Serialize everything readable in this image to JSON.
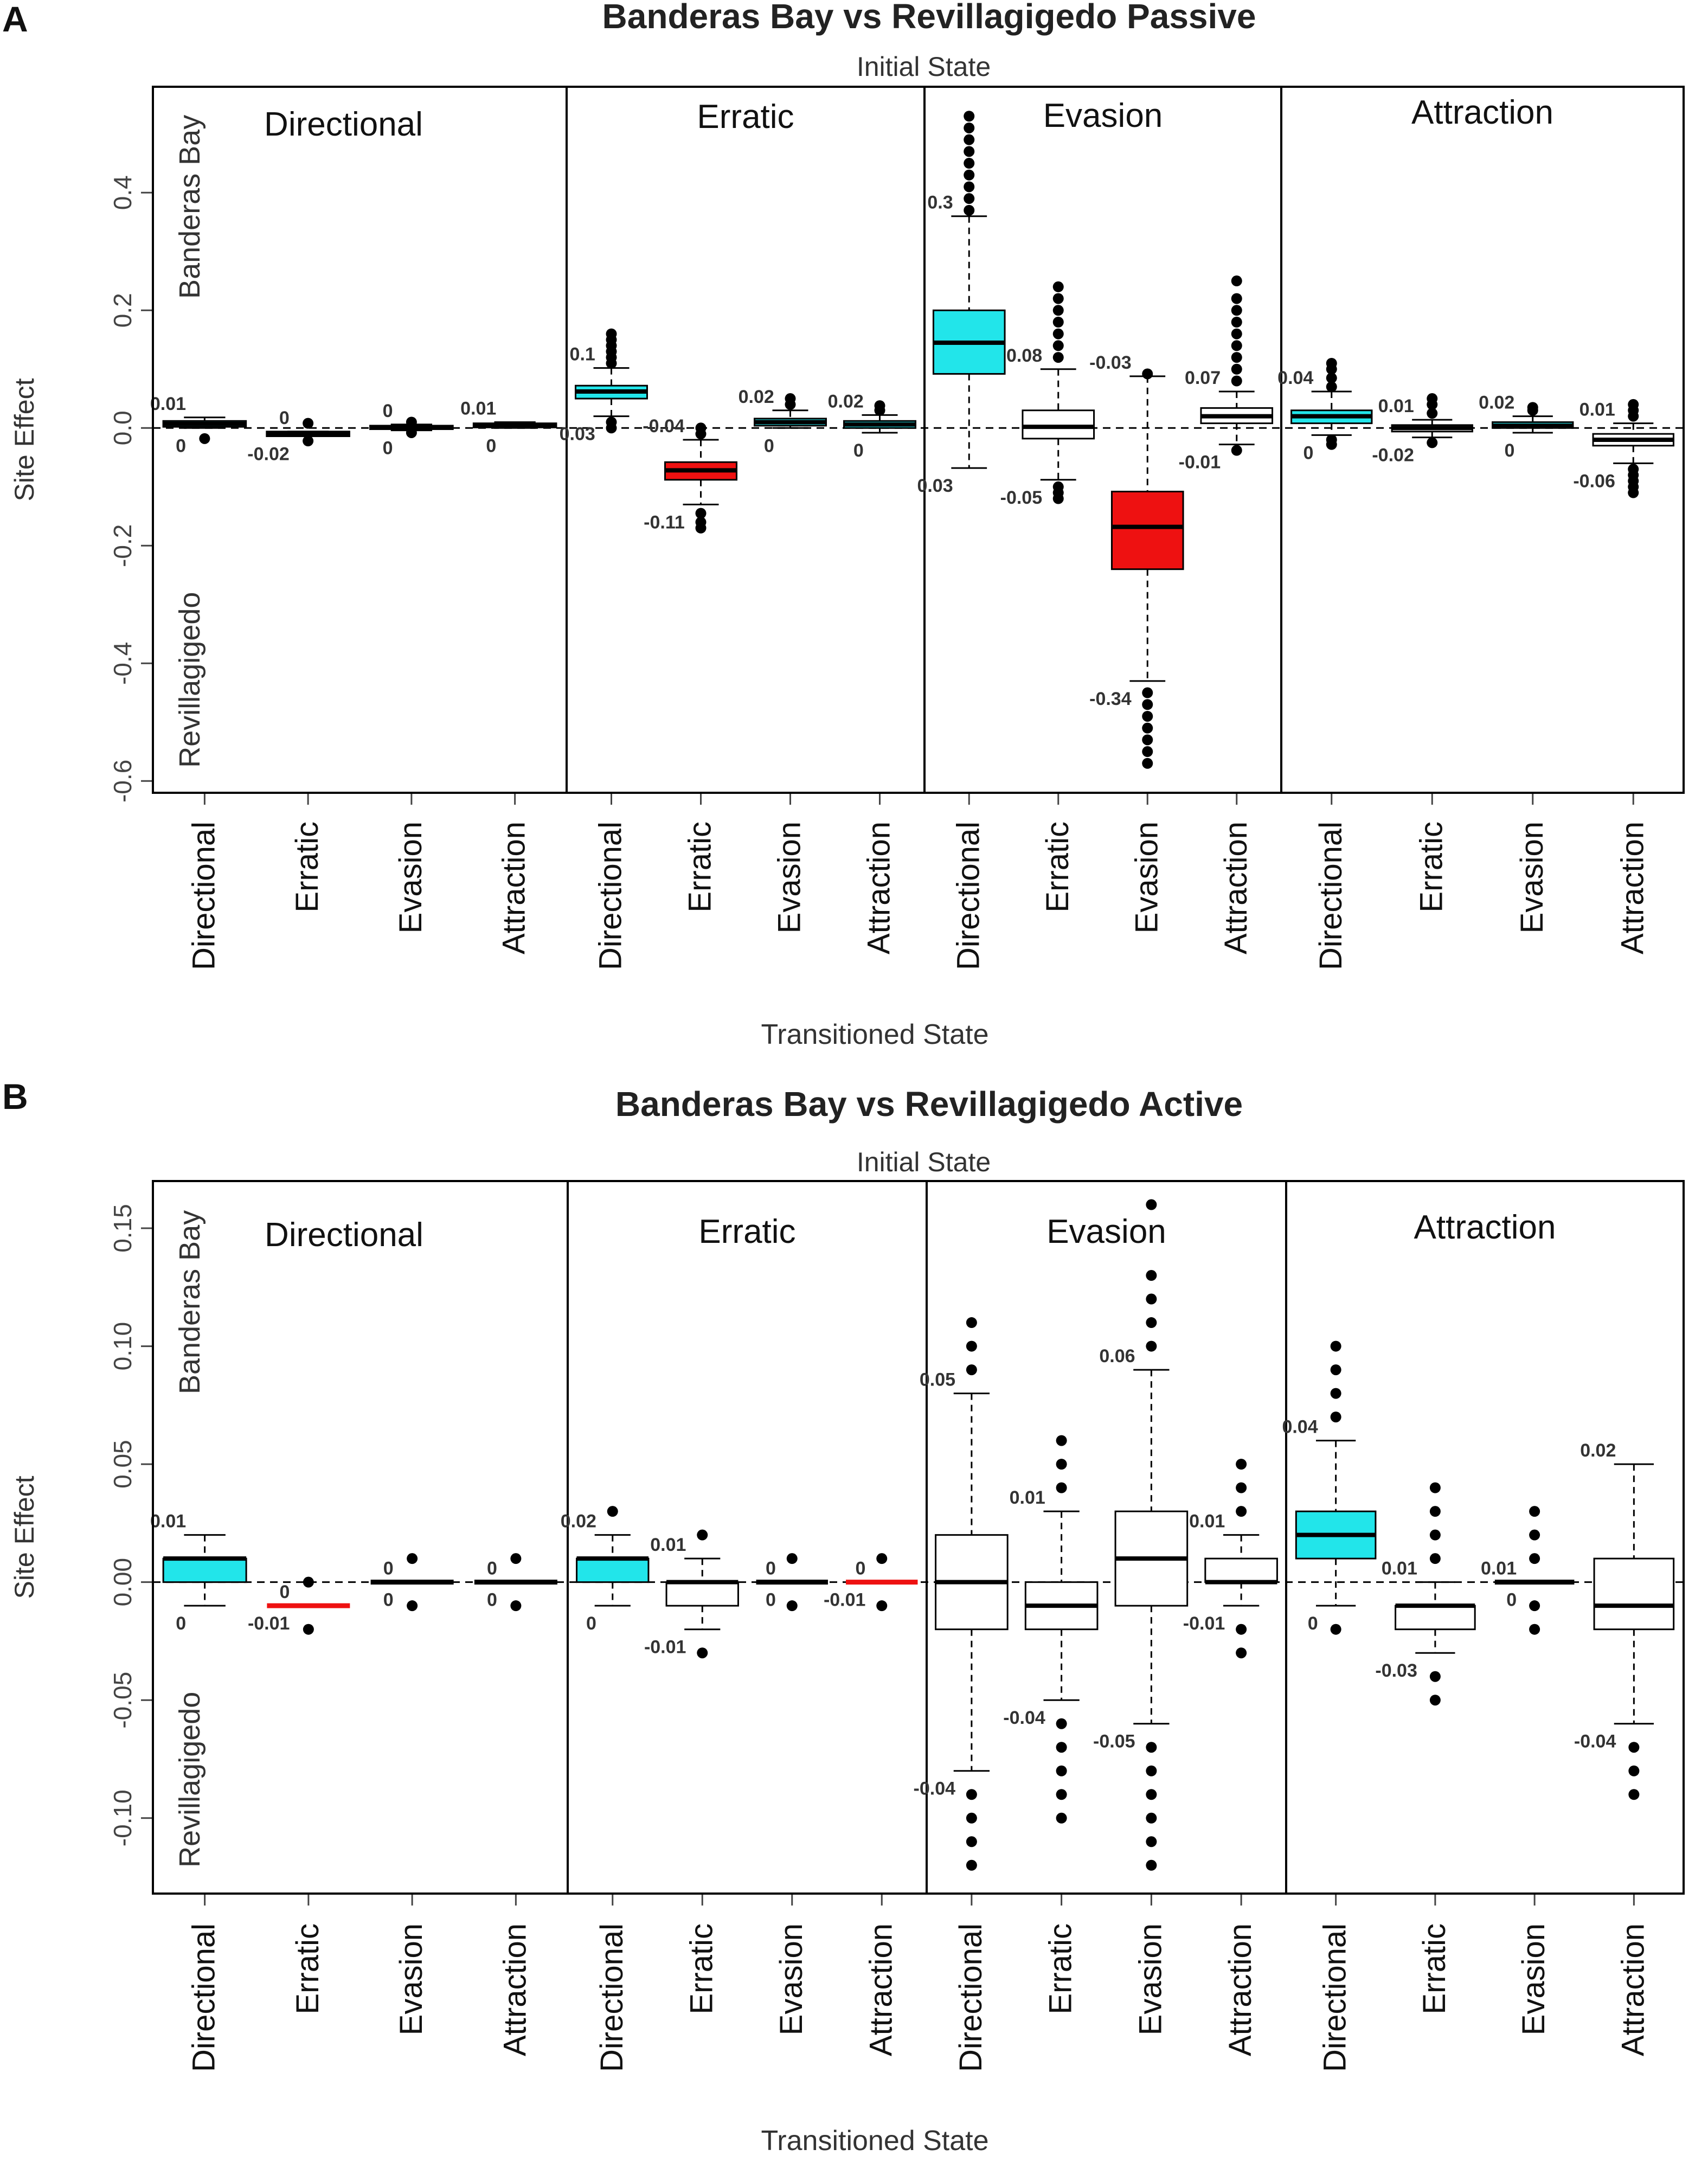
{
  "chart_data": [
    {
      "type": "box",
      "panel_label": "A",
      "title": "Banderas Bay vs Revillagigedo Passive",
      "subtitle": "Initial State",
      "xlabel": "Transitioned State",
      "ylabel": "Site Effect",
      "ylim": [
        -0.62,
        0.58
      ],
      "yticks": [
        -0.6,
        -0.4,
        -0.2,
        0.0,
        0.2,
        0.4
      ],
      "ytick_labels": [
        "-0.6",
        "-0.4",
        "-0.2",
        "0.0",
        "0.2",
        "0.4"
      ],
      "top_region_label": "Banderas Bay",
      "bottom_region_label": "Revillagigedo",
      "groups": [
        {
          "initial_state": "Directional",
          "boxes": [
            {
              "state": "Directional",
              "color": "#22e5ea",
              "q1": 0.002,
              "median": 0.007,
              "q3": 0.012,
              "whisker_low": 0.0,
              "whisker_high": 0.018,
              "outliers": [
                -0.018
              ],
              "label_high": "0.01",
              "label_low": "0"
            },
            {
              "state": "Erratic",
              "color": "#ee1111",
              "q1": -0.014,
              "median": -0.01,
              "q3": -0.006,
              "whisker_low": -0.014,
              "whisker_high": -0.006,
              "outliers": [
                0.008,
                -0.022
              ],
              "label_high": "0",
              "label_low": "-0.02"
            },
            {
              "state": "Evasion",
              "color": "#ffffff",
              "q1": -0.002,
              "median": 0.001,
              "q3": 0.004,
              "whisker_low": -0.004,
              "whisker_high": 0.006,
              "outliers": [
                0.01,
                -0.008
              ],
              "label_high": "0",
              "label_low": "0"
            },
            {
              "state": "Attraction",
              "color": "#22e5ea",
              "q1": 0.001,
              "median": 0.004,
              "q3": 0.008,
              "whisker_low": 0.0,
              "whisker_high": 0.01,
              "outliers": [],
              "label_high": "0.01",
              "label_low": "0"
            }
          ]
        },
        {
          "initial_state": "Erratic",
          "boxes": [
            {
              "state": "Directional",
              "color": "#22e5ea",
              "q1": 0.05,
              "median": 0.062,
              "q3": 0.072,
              "whisker_low": 0.02,
              "whisker_high": 0.102,
              "outliers": [
                0.11,
                0.12,
                0.13,
                0.14,
                0.15,
                0.16,
                0.0,
                0.01
              ],
              "label_high": "0.1",
              "label_low": "0.03"
            },
            {
              "state": "Erratic",
              "color": "#ee1111",
              "q1": -0.088,
              "median": -0.072,
              "q3": -0.058,
              "whisker_low": -0.13,
              "whisker_high": -0.02,
              "outliers": [
                -0.145,
                -0.16,
                -0.17,
                0.0,
                -0.01
              ],
              "label_high": "-0.04",
              "label_low": "-0.11"
            },
            {
              "state": "Evasion",
              "color": "#22e5ea",
              "q1": 0.004,
              "median": 0.01,
              "q3": 0.016,
              "whisker_low": 0.0,
              "whisker_high": 0.03,
              "outliers": [
                0.04,
                0.05
              ],
              "label_high": "0.02",
              "label_low": "0"
            },
            {
              "state": "Attraction",
              "color": "#22e5ea",
              "q1": 0.0,
              "median": 0.006,
              "q3": 0.012,
              "whisker_low": -0.008,
              "whisker_high": 0.022,
              "outliers": [
                0.03,
                0.038
              ],
              "label_high": "0.02",
              "label_low": "0"
            }
          ]
        },
        {
          "initial_state": "Evasion",
          "boxes": [
            {
              "state": "Directional",
              "color": "#22e5ea",
              "q1": 0.092,
              "median": 0.145,
              "q3": 0.2,
              "whisker_low": -0.068,
              "whisker_high": 0.36,
              "outliers": [
                0.37,
                0.39,
                0.41,
                0.43,
                0.45,
                0.47,
                0.49,
                0.51,
                0.53
              ],
              "label_high": "0.3",
              "label_low": "0.03"
            },
            {
              "state": "Erratic",
              "color": "#ffffff",
              "q1": -0.018,
              "median": 0.002,
              "q3": 0.03,
              "whisker_low": -0.088,
              "whisker_high": 0.1,
              "outliers": [
                0.12,
                0.14,
                0.16,
                0.18,
                0.2,
                0.22,
                0.24,
                -0.1,
                -0.11,
                -0.12
              ],
              "label_high": "0.08",
              "label_low": "-0.05"
            },
            {
              "state": "Evasion",
              "color": "#ee1111",
              "q1": -0.24,
              "median": -0.168,
              "q3": -0.108,
              "whisker_low": -0.43,
              "whisker_high": 0.088,
              "outliers": [
                -0.45,
                -0.47,
                -0.49,
                -0.51,
                -0.53,
                -0.55,
                -0.57,
                0.092
              ],
              "label_high": "-0.03",
              "label_low": "-0.34"
            },
            {
              "state": "Attraction",
              "color": "#ffffff",
              "q1": 0.008,
              "median": 0.02,
              "q3": 0.034,
              "whisker_low": -0.028,
              "whisker_high": 0.062,
              "outliers": [
                0.08,
                0.1,
                0.12,
                0.14,
                0.16,
                0.18,
                0.2,
                0.22,
                0.25,
                -0.038
              ],
              "label_high": "0.07",
              "label_low": "-0.01"
            }
          ]
        },
        {
          "initial_state": "Attraction",
          "boxes": [
            {
              "state": "Directional",
              "color": "#22e5ea",
              "q1": 0.008,
              "median": 0.02,
              "q3": 0.03,
              "whisker_low": -0.012,
              "whisker_high": 0.062,
              "outliers": [
                0.07,
                0.085,
                0.1,
                0.11,
                -0.02,
                -0.028
              ],
              "label_high": "0.04",
              "label_low": "0"
            },
            {
              "state": "Erratic",
              "color": "#ffffff",
              "q1": -0.006,
              "median": 0.0,
              "q3": 0.005,
              "whisker_low": -0.016,
              "whisker_high": 0.014,
              "outliers": [
                0.025,
                0.04,
                0.05,
                -0.025
              ],
              "label_high": "0.01",
              "label_low": "-0.02"
            },
            {
              "state": "Evasion",
              "color": "#22e5ea",
              "q1": 0.0,
              "median": 0.004,
              "q3": 0.01,
              "whisker_low": -0.008,
              "whisker_high": 0.02,
              "outliers": [
                0.03,
                0.035
              ],
              "label_high": "0.02",
              "label_low": "0"
            },
            {
              "state": "Attraction",
              "color": "#ffffff",
              "q1": -0.03,
              "median": -0.02,
              "q3": -0.01,
              "whisker_low": -0.06,
              "whisker_high": 0.008,
              "outliers": [
                0.02,
                0.03,
                0.04,
                -0.07,
                -0.08,
                -0.09,
                -0.1,
                -0.11
              ],
              "label_high": "0.01",
              "label_low": "-0.06"
            }
          ]
        }
      ]
    },
    {
      "type": "box",
      "panel_label": "B",
      "title": "Banderas Bay vs Revillagigedo Active",
      "subtitle": "Initial State",
      "xlabel": "Transitioned State",
      "ylabel": "Site Effect",
      "ylim": [
        -0.132,
        0.17
      ],
      "yticks": [
        -0.1,
        -0.05,
        0.0,
        0.05,
        0.1,
        0.15
      ],
      "ytick_labels": [
        "-0.10",
        "-0.05",
        "0.00",
        "0.05",
        "0.10",
        "0.15"
      ],
      "top_region_label": "Banderas Bay",
      "bottom_region_label": "Revillagigedo",
      "groups": [
        {
          "initial_state": "Directional",
          "boxes": [
            {
              "state": "Directional",
              "color": "#22e5ea",
              "q1": 0.0,
              "median": 0.01,
              "q3": 0.01,
              "whisker_low": -0.01,
              "whisker_high": 0.02,
              "outliers": [],
              "label_high": "0.01",
              "label_low": "0"
            },
            {
              "state": "Erratic",
              "color": "#ee1111",
              "q1": -0.01,
              "median": -0.01,
              "q3": -0.01,
              "whisker_low": -0.01,
              "whisker_high": -0.01,
              "outliers": [
                0.0,
                -0.02
              ],
              "label_high": "0",
              "label_low": "-0.01"
            },
            {
              "state": "Evasion",
              "color": "#ffffff",
              "q1": 0.0,
              "median": 0.0,
              "q3": 0.0,
              "whisker_low": 0.0,
              "whisker_high": 0.0,
              "outliers": [
                0.01,
                -0.01
              ],
              "label_high": "0",
              "label_low": "0"
            },
            {
              "state": "Attraction",
              "color": "#ffffff",
              "q1": 0.0,
              "median": 0.0,
              "q3": 0.0,
              "whisker_low": 0.0,
              "whisker_high": 0.0,
              "outliers": [
                0.01,
                -0.01
              ],
              "label_high": "0",
              "label_low": "0"
            }
          ]
        },
        {
          "initial_state": "Erratic",
          "boxes": [
            {
              "state": "Directional",
              "color": "#22e5ea",
              "q1": 0.0,
              "median": 0.01,
              "q3": 0.01,
              "whisker_low": -0.01,
              "whisker_high": 0.02,
              "outliers": [
                0.03
              ],
              "label_high": "0.02",
              "label_low": "0"
            },
            {
              "state": "Erratic",
              "color": "#ffffff",
              "q1": -0.01,
              "median": 0.0,
              "q3": 0.0,
              "whisker_low": -0.02,
              "whisker_high": 0.01,
              "outliers": [
                0.02,
                -0.03
              ],
              "label_high": "0.01",
              "label_low": "-0.01"
            },
            {
              "state": "Evasion",
              "color": "#ffffff",
              "q1": 0.0,
              "median": 0.0,
              "q3": 0.0,
              "whisker_low": 0.0,
              "whisker_high": 0.0,
              "outliers": [
                0.01,
                -0.01
              ],
              "label_high": "0",
              "label_low": "0"
            },
            {
              "state": "Attraction",
              "color": "#ee1111",
              "q1": 0.0,
              "median": 0.0,
              "q3": 0.0,
              "whisker_low": 0.0,
              "whisker_high": 0.0,
              "outliers": [
                0.01,
                -0.01
              ],
              "label_high": "0",
              "label_low": "-0.01"
            }
          ]
        },
        {
          "initial_state": "Evasion",
          "boxes": [
            {
              "state": "Directional",
              "color": "#ffffff",
              "q1": -0.02,
              "median": 0.0,
              "q3": 0.02,
              "whisker_low": -0.08,
              "whisker_high": 0.08,
              "outliers": [
                0.09,
                0.1,
                0.11,
                -0.09,
                -0.1,
                -0.11,
                -0.12
              ],
              "label_high": "0.05",
              "label_low": "-0.04"
            },
            {
              "state": "Erratic",
              "color": "#ffffff",
              "q1": -0.02,
              "median": -0.01,
              "q3": 0.0,
              "whisker_low": -0.05,
              "whisker_high": 0.03,
              "outliers": [
                0.04,
                0.05,
                0.06,
                -0.06,
                -0.07,
                -0.08,
                -0.09,
                -0.1
              ],
              "label_high": "0.01",
              "label_low": "-0.04"
            },
            {
              "state": "Evasion",
              "color": "#ffffff",
              "q1": -0.01,
              "median": 0.01,
              "q3": 0.03,
              "whisker_low": -0.06,
              "whisker_high": 0.09,
              "outliers": [
                0.1,
                0.11,
                0.12,
                0.13,
                0.16,
                -0.07,
                -0.08,
                -0.09,
                -0.1,
                -0.11,
                -0.12
              ],
              "label_high": "0.06",
              "label_low": "-0.05"
            },
            {
              "state": "Attraction",
              "color": "#ffffff",
              "q1": 0.0,
              "median": 0.0,
              "q3": 0.01,
              "whisker_low": -0.01,
              "whisker_high": 0.02,
              "outliers": [
                0.03,
                0.04,
                0.05,
                -0.02,
                -0.03
              ],
              "label_high": "0.01",
              "label_low": "-0.01"
            }
          ]
        },
        {
          "initial_state": "Attraction",
          "boxes": [
            {
              "state": "Directional",
              "color": "#22e5ea",
              "q1": 0.01,
              "median": 0.02,
              "q3": 0.03,
              "whisker_low": -0.01,
              "whisker_high": 0.06,
              "outliers": [
                0.07,
                0.08,
                0.09,
                0.1,
                -0.02
              ],
              "label_high": "0.04",
              "label_low": "0"
            },
            {
              "state": "Erratic",
              "color": "#ffffff",
              "q1": -0.02,
              "median": -0.01,
              "q3": -0.01,
              "whisker_low": -0.03,
              "whisker_high": 0.0,
              "outliers": [
                0.01,
                0.02,
                0.03,
                0.04,
                -0.04,
                -0.05
              ],
              "label_high": "0.01",
              "label_low": "-0.03"
            },
            {
              "state": "Evasion",
              "color": "#ffffff",
              "q1": 0.0,
              "median": 0.0,
              "q3": 0.0,
              "whisker_low": 0.0,
              "whisker_high": 0.0,
              "outliers": [
                0.01,
                0.02,
                0.03,
                -0.01,
                -0.02
              ],
              "label_high": "0.01",
              "label_low": "0"
            },
            {
              "state": "Attraction",
              "color": "#ffffff",
              "q1": -0.02,
              "median": -0.01,
              "q3": 0.01,
              "whisker_low": -0.06,
              "whisker_high": 0.05,
              "outliers": [
                -0.07,
                -0.08,
                -0.09
              ],
              "label_high": "0.02",
              "label_low": "-0.04"
            }
          ]
        }
      ]
    }
  ]
}
